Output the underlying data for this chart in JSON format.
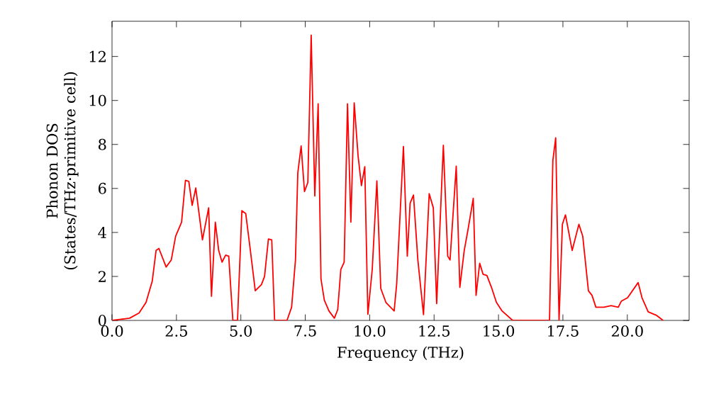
{
  "chart_data": {
    "type": "line",
    "xlabel": "Frequency (THz)",
    "ylabel": "Phonon DOS (States/THz·primitive cell)",
    "xlim": [
      0,
      22.4
    ],
    "ylim": [
      0,
      13.6
    ],
    "xticks": [
      {
        "value": 0,
        "label": "0.0"
      },
      {
        "value": 2.5,
        "label": "2.5"
      },
      {
        "value": 5,
        "label": "5.0"
      },
      {
        "value": 7.5,
        "label": "7.5"
      },
      {
        "value": 10,
        "label": "10.0"
      },
      {
        "value": 12.5,
        "label": "12.5"
      },
      {
        "value": 15,
        "label": "15.0"
      },
      {
        "value": 17.5,
        "label": "17.5"
      },
      {
        "value": 20,
        "label": "20.0"
      }
    ],
    "yticks": [
      0,
      2,
      4,
      6,
      8,
      10,
      12
    ],
    "marker": "none",
    "line_style": "solid",
    "series": [
      {
        "color": "#ff0000",
        "x": [
          0,
          0.68,
          1.05,
          1.32,
          1.56,
          1.71,
          1.82,
          2.1,
          2.3,
          2.47,
          2.7,
          2.85,
          2.98,
          3.11,
          3.25,
          3.51,
          3.75,
          3.86,
          4.01,
          4.14,
          4.27,
          4.41,
          4.53,
          4.69,
          4.87,
          5.04,
          5.19,
          5.37,
          5.56,
          5.8,
          5.92,
          6.07,
          6.2,
          6.31,
          6.79,
          6.97,
          7.12,
          7.21,
          7.34,
          7.47,
          7.6,
          7.73,
          7.87,
          8.0,
          8.11,
          8.24,
          8.42,
          8.63,
          8.76,
          8.88,
          9.01,
          9.14,
          9.27,
          9.4,
          9.55,
          9.68,
          9.81,
          9.93,
          10.1,
          10.28,
          10.43,
          10.63,
          10.95,
          11.05,
          11.31,
          11.46,
          11.57,
          11.7,
          11.87,
          12.09,
          12.31,
          12.47,
          12.6,
          12.86,
          13.03,
          13.12,
          13.36,
          13.5,
          13.67,
          13.82,
          14.02,
          14.13,
          14.27,
          14.4,
          14.55,
          14.74,
          14.92,
          15.14,
          15.55,
          16.98,
          17.11,
          17.22,
          17.35,
          17.48,
          17.6,
          17.86,
          18.12,
          18.27,
          18.49,
          18.63,
          18.78,
          19.09,
          19.37,
          19.65,
          19.77,
          20.01,
          20.42,
          20.57,
          20.81,
          21.12,
          21.39
        ],
        "values": [
          0,
          0.1,
          0.34,
          0.82,
          1.78,
          3.18,
          3.27,
          2.43,
          2.75,
          3.83,
          4.47,
          6.37,
          6.32,
          5.23,
          6.02,
          3.66,
          5.12,
          1.1,
          4.47,
          3.18,
          2.65,
          2.97,
          2.92,
          0,
          0,
          4.99,
          4.86,
          3.18,
          1.35,
          1.63,
          2.0,
          3.7,
          3.66,
          0,
          0,
          0.6,
          2.75,
          6.7,
          7.93,
          5.86,
          6.27,
          12.97,
          5.66,
          9.85,
          1.89,
          0.92,
          0.43,
          0.1,
          0.49,
          2.32,
          2.65,
          9.85,
          4.47,
          9.89,
          7.48,
          6.13,
          6.99,
          0.28,
          2.32,
          6.34,
          1.46,
          0.82,
          0.43,
          1.68,
          7.91,
          2.92,
          5.33,
          5.7,
          2.75,
          0.26,
          5.76,
          5.12,
          0.77,
          7.96,
          2.92,
          2.75,
          7.01,
          1.5,
          3.18,
          4.15,
          5.55,
          1.14,
          2.6,
          2.1,
          2.04,
          1.46,
          0.82,
          0.43,
          0,
          0,
          7.27,
          8.3,
          0,
          4.37,
          4.8,
          3.18,
          4.37,
          3.83,
          1.35,
          1.14,
          0.6,
          0.6,
          0.67,
          0.6,
          0.88,
          1.03,
          1.72,
          1.03,
          0.39,
          0.24,
          0
        ]
      }
    ]
  }
}
